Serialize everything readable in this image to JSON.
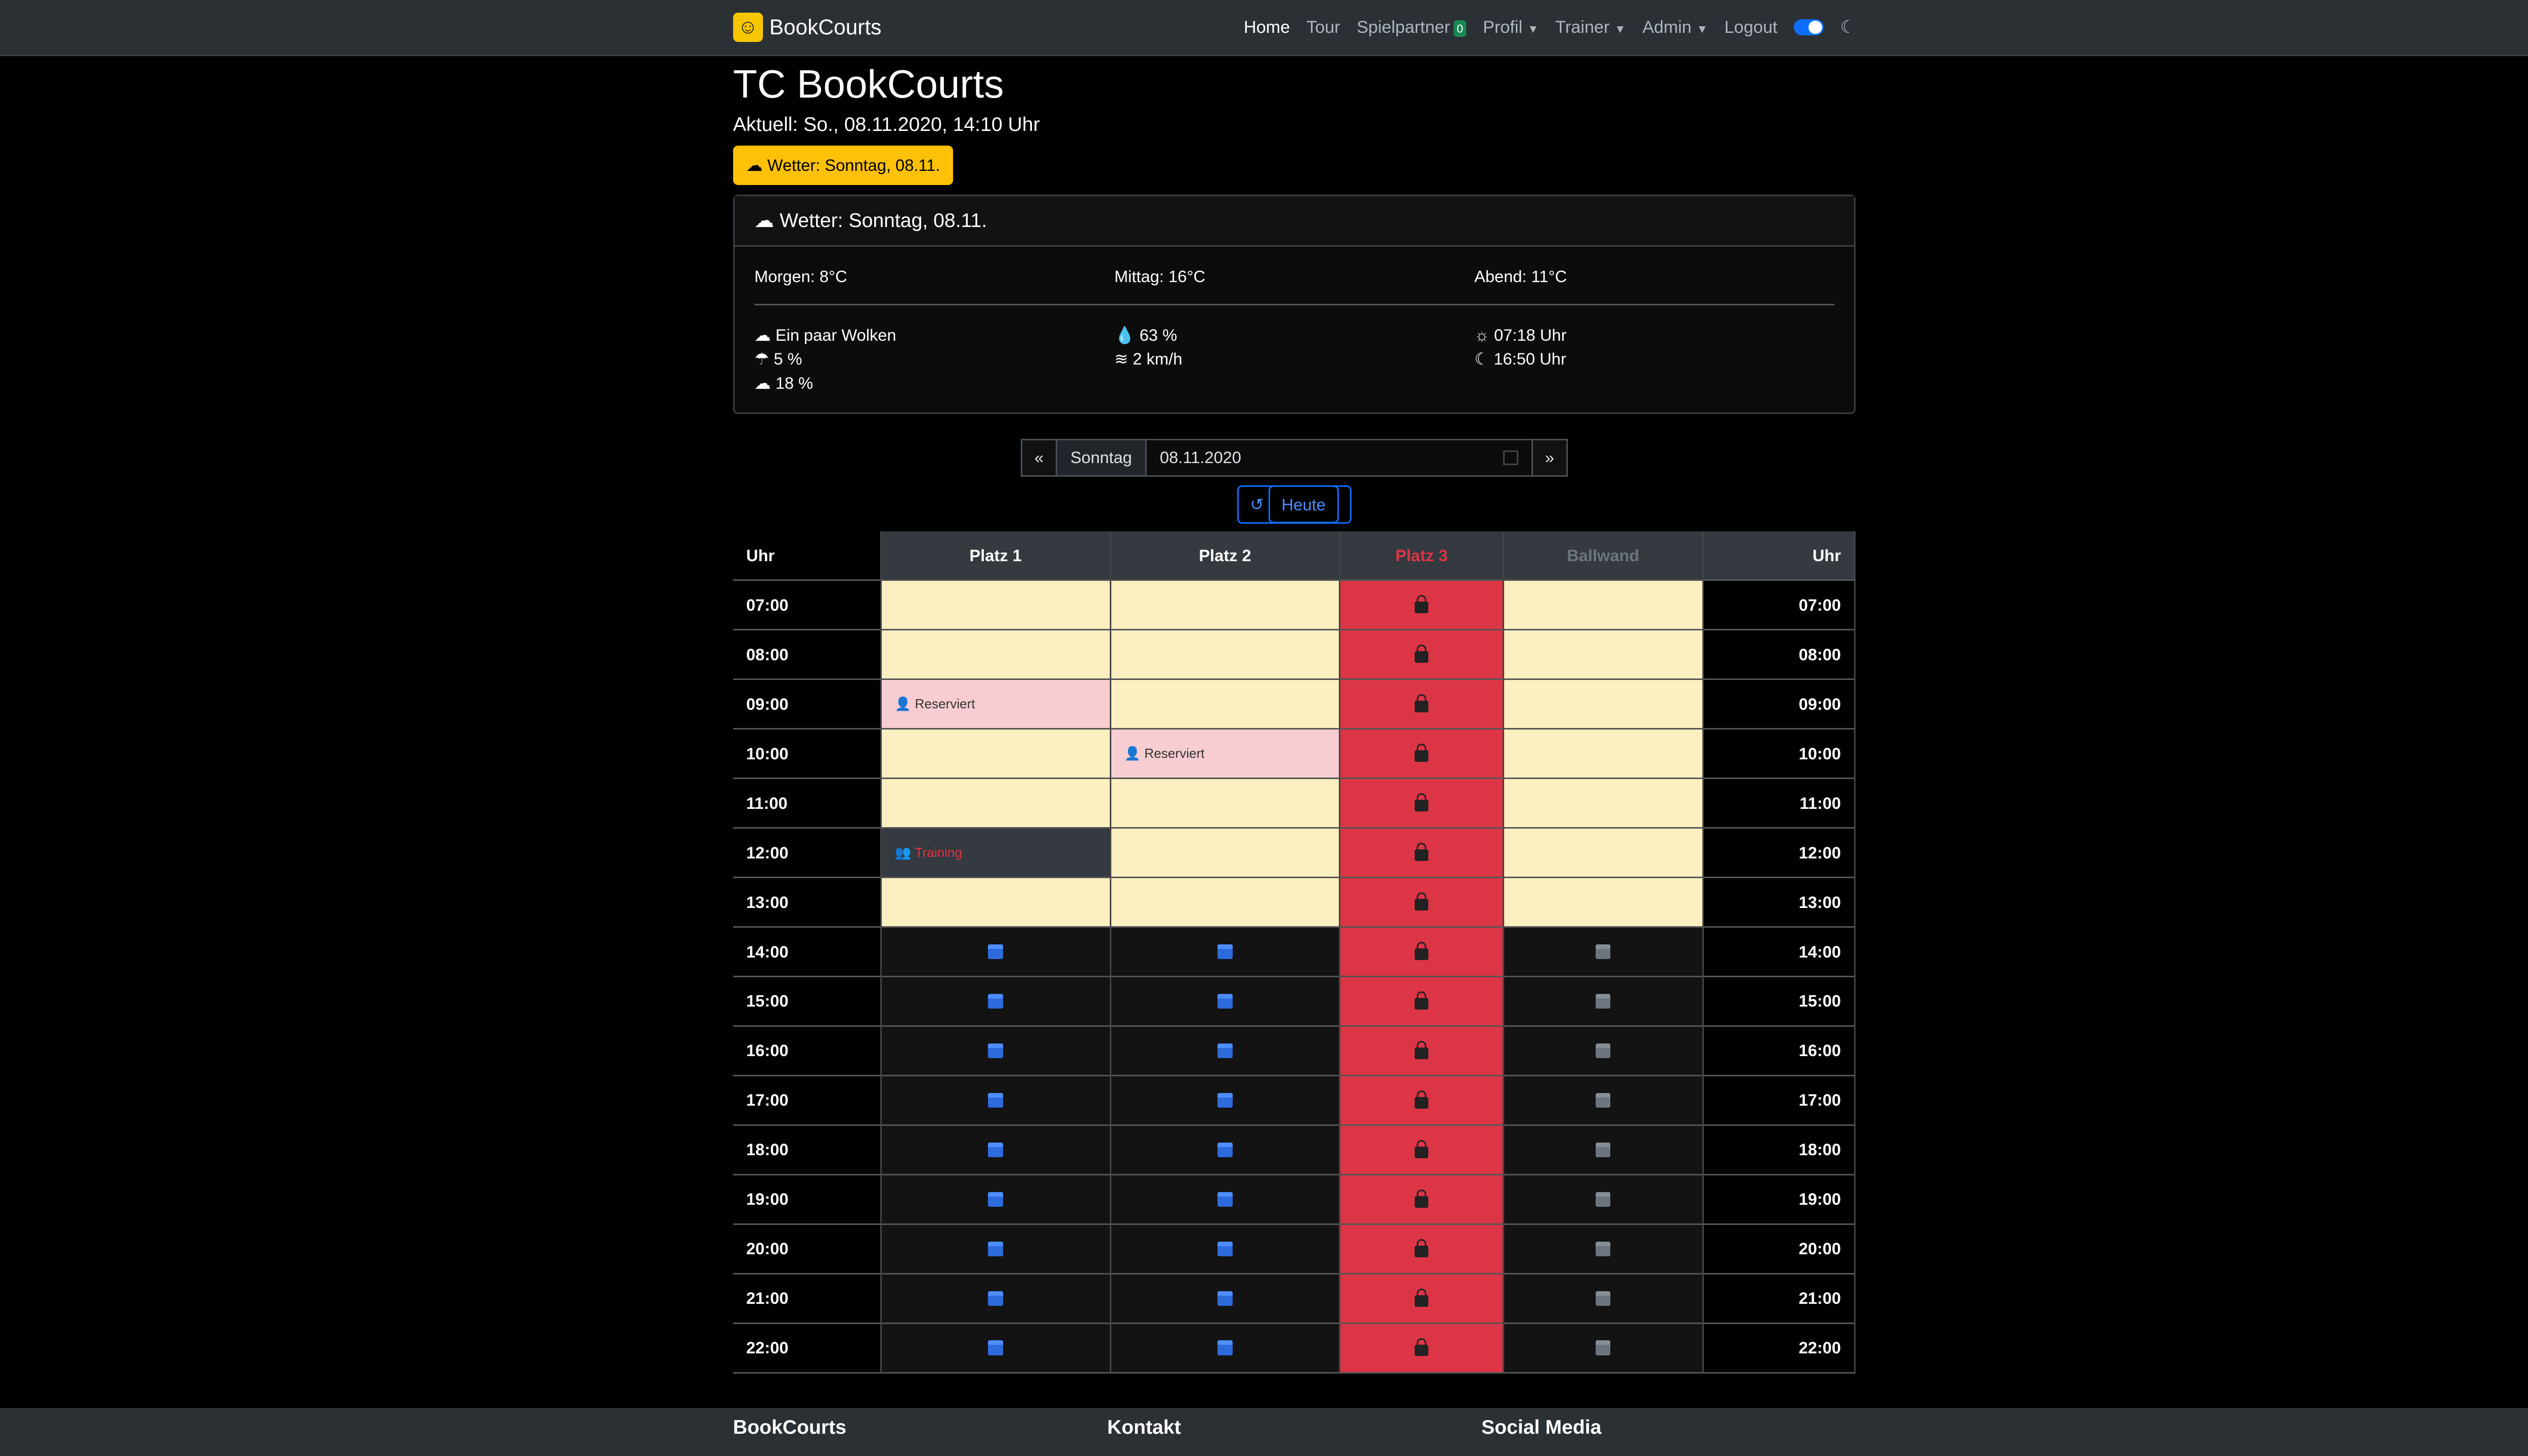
{
  "nav": {
    "brand": "BookCourts",
    "home": "Home",
    "tour": "Tour",
    "partner": "Spielpartner",
    "partner_count": "0",
    "profil": "Profil",
    "trainer": "Trainer",
    "admin": "Admin",
    "logout": "Logout"
  },
  "title": "TC BookCourts",
  "current": "Aktuell: So., 08.11.2020, 14:10 Uhr",
  "weather_button": "Wetter: Sonntag, 08.11.",
  "weather": {
    "header": "Wetter: Sonntag, 08.11.",
    "morning": "Morgen: 8°C",
    "noon": "Mittag: 16°C",
    "evening": "Abend: 11°C",
    "cond": "Ein paar Wolken",
    "rain": "5 %",
    "clouds": "18 %",
    "humidity": "63 %",
    "wind": "2 km/h",
    "sunrise": "07:18 Uhr",
    "sunset": "16:50 Uhr"
  },
  "date": {
    "prev": "«",
    "day": "Sonntag",
    "value": "08.11.2020",
    "next": "»",
    "today": "Heute"
  },
  "table": {
    "time_label": "Uhr",
    "courts": [
      {
        "name": "Platz 1",
        "color": "#ffffff"
      },
      {
        "name": "Platz 2",
        "color": "#ffffff"
      },
      {
        "name": "Platz 3",
        "color": "#dc3545"
      },
      {
        "name": "Ballwand",
        "color": "#6c757d"
      }
    ],
    "times": [
      "07:00",
      "08:00",
      "09:00",
      "10:00",
      "11:00",
      "12:00",
      "13:00",
      "14:00",
      "15:00",
      "16:00",
      "17:00",
      "18:00",
      "19:00",
      "20:00",
      "21:00",
      "22:00"
    ],
    "reserved": "Reserviert",
    "training": "Training"
  },
  "footer": {
    "col1": "BookCourts",
    "col2": "Kontakt",
    "col3": "Social Media"
  }
}
